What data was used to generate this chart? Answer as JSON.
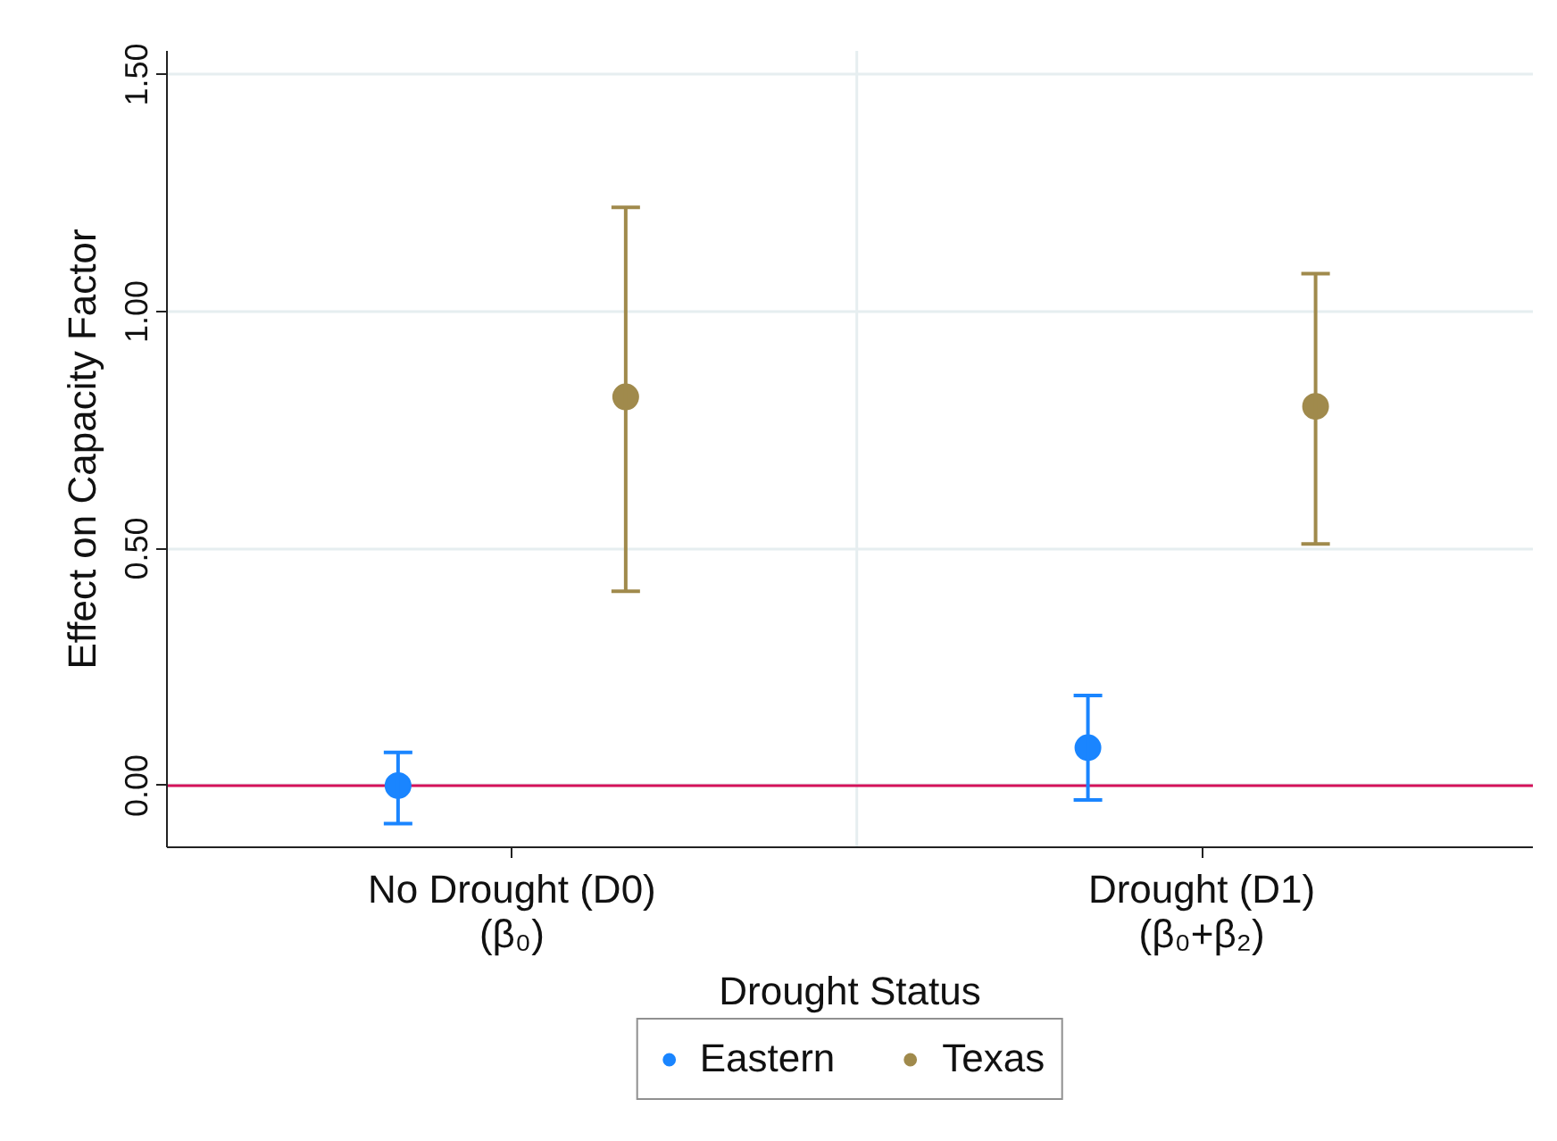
{
  "chart_data": {
    "type": "scatter",
    "xlabel": "Drought Status",
    "ylabel": "Effect on Capacity Factor",
    "categories": [
      "No Drought (D0)\n(β₀)",
      "Drought (D1)\n(β₀+β₂)"
    ],
    "ylim": [
      -0.13,
      1.55
    ],
    "yticks": [
      {
        "value": 0,
        "label": "0.00"
      },
      {
        "value": 0.5,
        "label": "0.50"
      },
      {
        "value": 1,
        "label": "1.00"
      },
      {
        "value": 1.5,
        "label": "1.50"
      }
    ],
    "series": [
      {
        "name": "Eastern",
        "color": "#1a85ff",
        "values": [
          0.0,
          0.08
        ],
        "errors": [
          [
            -0.08,
            0.07
          ],
          [
            -0.03,
            0.19
          ]
        ]
      },
      {
        "name": "Texas",
        "color": "#a08a4c",
        "values": [
          0.82,
          0.8
        ],
        "errors": [
          [
            0.41,
            1.22
          ],
          [
            0.51,
            1.08
          ]
        ]
      }
    ],
    "ref_lines": [
      {
        "axis": "y",
        "value": 0,
        "color": "#d41159"
      }
    ],
    "grid": "y",
    "legend": "bottom",
    "marker": "circle"
  }
}
